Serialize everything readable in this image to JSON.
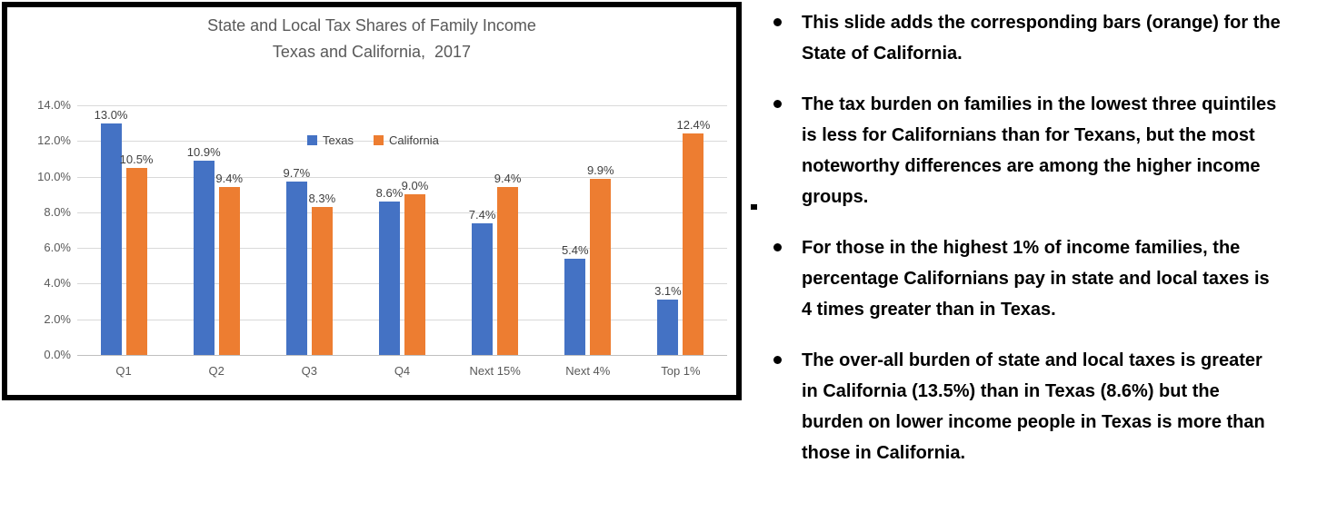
{
  "chart": {
    "title_line1": "State and Local Tax Shares of Family Income",
    "title_line2": "Texas and California,  2017"
  },
  "chart_data": {
    "type": "bar",
    "title": "State and Local Tax Shares of Family Income — Texas and California, 2017",
    "categories": [
      "Q1",
      "Q2",
      "Q3",
      "Q4",
      "Next 15%",
      "Next 4%",
      "Top 1%"
    ],
    "series": [
      {
        "name": "Texas",
        "color": "#4472C4",
        "values": [
          13.0,
          10.9,
          9.7,
          8.6,
          7.4,
          5.4,
          3.1
        ]
      },
      {
        "name": "California",
        "color": "#ED7D31",
        "values": [
          10.5,
          9.4,
          8.3,
          9.0,
          9.4,
          9.9,
          12.4
        ]
      }
    ],
    "ylim": [
      0,
      14
    ],
    "ytick_step": 2,
    "ytick_suffix": "%",
    "grid": true,
    "data_labels": true,
    "legend_position": "inside-top-center",
    "xlabel": "",
    "ylabel": ""
  },
  "bullets": [
    "This slide adds the corresponding bars (orange) for the State of California.",
    "The tax burden on families in the lowest three quintiles is less for Californians than for Texans, but the most noteworthy differences are among the higher income groups.",
    "For those in the highest 1% of income families, the percentage Californians pay in state and local taxes is 4 times greater than in Texas.",
    "The over-all burden of state and local taxes is greater in California (13.5%) than in Texas (8.6%) but the burden on lower income people in Texas is more than those in California."
  ],
  "colors": {
    "texas": "#4472C4",
    "california": "#ED7D31",
    "title_text": "#595959",
    "axis_text": "#595959",
    "data_label_text": "#404040",
    "gridline": "#D9D9D9",
    "frame_border": "#000000",
    "bullet_text": "#000000"
  }
}
